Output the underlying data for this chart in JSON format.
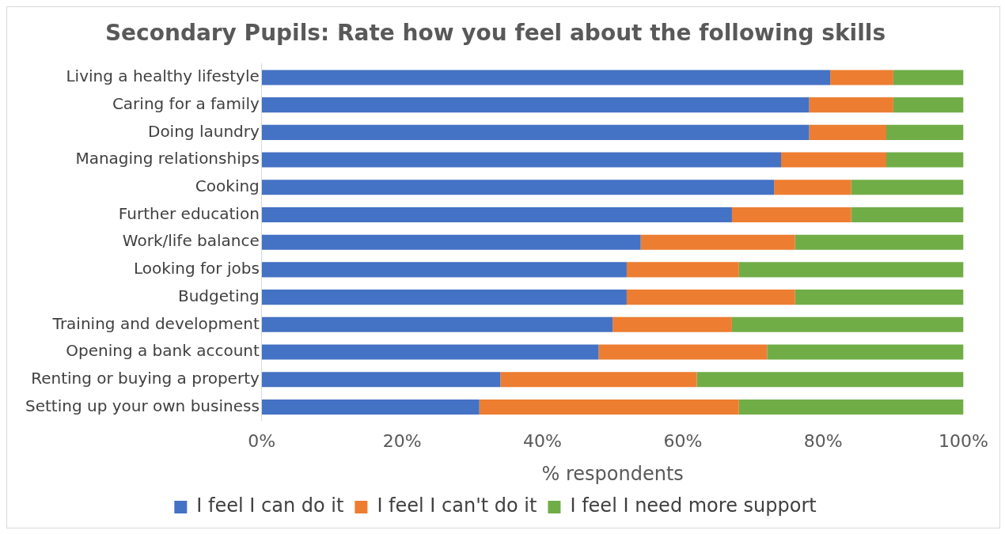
{
  "chart_data": {
    "type": "bar",
    "orientation": "horizontal",
    "stacked": true,
    "title": "Secondary Pupils: Rate how you feel about the following skills",
    "xlabel": "% respondents",
    "categories": [
      "Living a healthy lifestyle",
      "Caring for a family",
      "Doing laundry",
      "Managing relationships",
      "Cooking",
      "Further education",
      "Work/life balance",
      "Looking for jobs",
      "Budgeting",
      "Training and development",
      "Opening a bank account",
      "Renting or buying a property",
      "Setting up your own business"
    ],
    "series": [
      {
        "name": "I feel I can do it",
        "color": "#4472c4",
        "values": [
          81,
          78,
          78,
          74,
          73,
          67,
          54,
          52,
          52,
          50,
          48,
          34,
          31
        ]
      },
      {
        "name": "I feel I can't do it",
        "color": "#ed7d31",
        "values": [
          9,
          12,
          11,
          15,
          11,
          17,
          22,
          16,
          24,
          17,
          24,
          28,
          37
        ]
      },
      {
        "name": "I feel I need more support",
        "color": "#70ad47",
        "values": [
          10,
          10,
          11,
          11,
          16,
          16,
          24,
          32,
          24,
          33,
          28,
          38,
          32
        ]
      }
    ],
    "xlim": [
      0,
      100
    ],
    "xticks": [
      {
        "value": 0,
        "label": "0%"
      },
      {
        "value": 20,
        "label": "20%"
      },
      {
        "value": 40,
        "label": "40%"
      },
      {
        "value": 60,
        "label": "60%"
      },
      {
        "value": 80,
        "label": "80%"
      },
      {
        "value": 100,
        "label": "100%"
      }
    ],
    "grid": false,
    "legend": "bottom"
  }
}
